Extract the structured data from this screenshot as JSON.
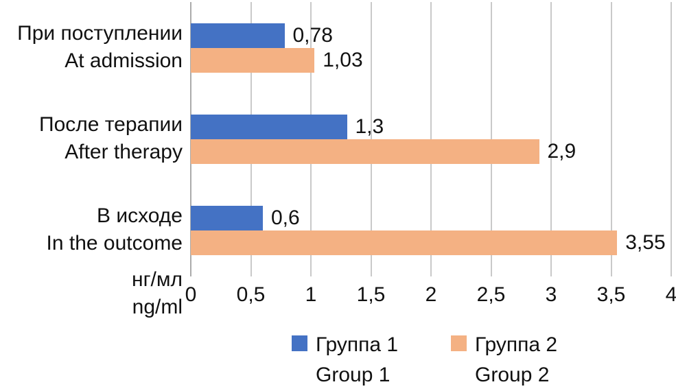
{
  "chart_data": {
    "type": "bar",
    "orientation": "horizontal",
    "title": "",
    "categories": [
      {
        "ru": "При поступлении",
        "en": "At admission"
      },
      {
        "ru": "После терапии",
        "en": "After therapy"
      },
      {
        "ru": "В исходе",
        "en": "In the outcome"
      }
    ],
    "series": [
      {
        "name_ru": "Группа 1",
        "name_en": "Group 1",
        "color": "#4472C4",
        "values": [
          0.78,
          1.3,
          0.6
        ],
        "value_labels": [
          "0,78",
          "1,3",
          "0,6"
        ]
      },
      {
        "name_ru": "Группа 2",
        "name_en": "Group 2",
        "color": "#F4B183",
        "values": [
          1.03,
          2.9,
          3.55
        ],
        "value_labels": [
          "1,03",
          "2,9",
          "3,55"
        ]
      }
    ],
    "x_axis": {
      "min": 0,
      "max": 4,
      "tick_step": 0.5,
      "tick_labels": [
        "0",
        "0,5",
        "1",
        "1,5",
        "2",
        "2,5",
        "3",
        "3,5",
        "4"
      ],
      "unit_ru": "нг/мл",
      "unit_en": "ng/ml"
    },
    "grid": true,
    "legend_position": "bottom",
    "colors": {
      "grid": "#C9C9C9",
      "axis": "#ABABAB",
      "text": "#111111",
      "background": "#FFFFFF"
    }
  }
}
